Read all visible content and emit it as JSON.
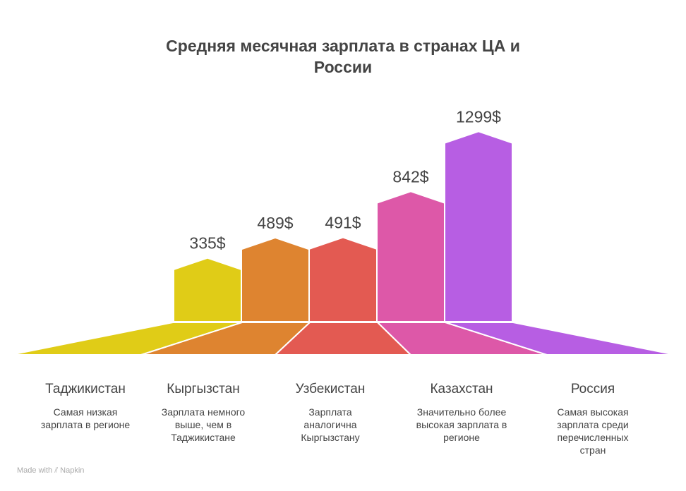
{
  "footer": {
    "made_with": "Made with",
    "brand": "Napkin"
  },
  "chart_data": {
    "type": "bar",
    "title": "Средняя месячная зарплата в странах ЦА и России",
    "title_lines": [
      "Средняя месячная зарплата в странах ЦА и",
      "России"
    ],
    "categories": [
      "Таджикистан",
      "Кыргызстан",
      "Узбекистан",
      "Казахстан",
      "Россия"
    ],
    "values": [
      335,
      489,
      491,
      842,
      1299
    ],
    "value_labels": [
      "335$",
      "489$",
      "491$",
      "842$",
      "1299$"
    ],
    "descriptions": [
      "Самая низкая зарплата в регионе",
      "Зарплата немного выше, чем в Таджикистане",
      "Зарплата аналогична Кыргызстану",
      "Значительно более высокая зарплата в регионе",
      "Самая высокая зарплата среди перечисленных стран"
    ],
    "colors": [
      "#e0cc17",
      "#de8430",
      "#e35a52",
      "#dd58a8",
      "#b75ee3"
    ],
    "xlabel": "",
    "ylabel": "",
    "unit": "$"
  }
}
